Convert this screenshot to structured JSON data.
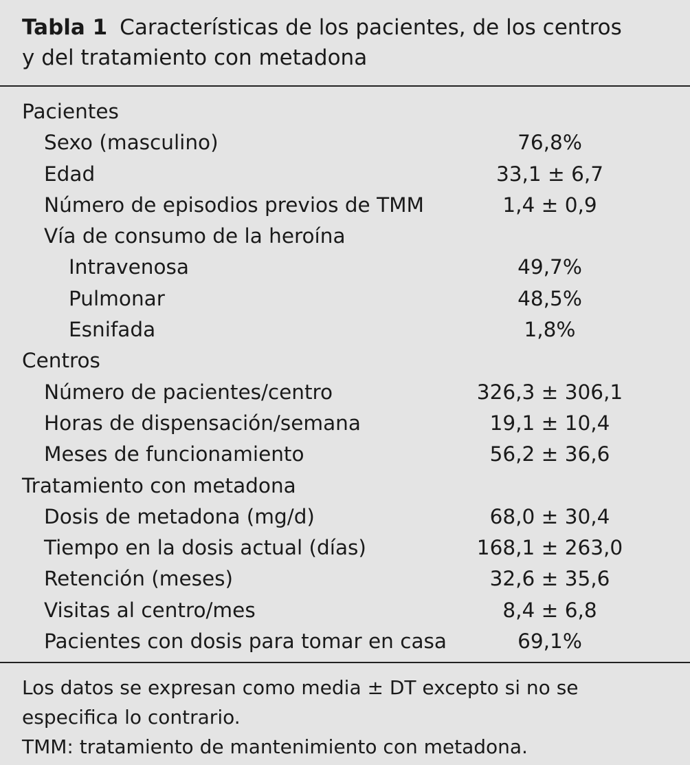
{
  "table": {
    "label": "Tabla 1",
    "title_line1": "Características de los pacientes, de los centros",
    "title_line2": "y del tratamiento con metadona",
    "rows": [
      {
        "label": "Pacientes",
        "value": "",
        "level": 0
      },
      {
        "label": "Sexo (masculino)",
        "value": "76,8%",
        "level": 1
      },
      {
        "label": "Edad",
        "value": "33,1 ± 6,7",
        "level": 1
      },
      {
        "label": "Número de episodios previos de TMM",
        "value": "1,4 ± 0,9",
        "level": 1
      },
      {
        "label": "Vía de consumo de la heroína",
        "value": "",
        "level": 1
      },
      {
        "label": "Intravenosa",
        "value": "49,7%",
        "level": 2
      },
      {
        "label": "Pulmonar",
        "value": "48,5%",
        "level": 2
      },
      {
        "label": "Esnifada",
        "value": "1,8%",
        "level": 2
      },
      {
        "label": "Centros",
        "value": "",
        "level": 0
      },
      {
        "label": "Número de pacientes/centro",
        "value": "326,3 ± 306,1",
        "level": 1
      },
      {
        "label": "Horas de dispensación/semana",
        "value": "19,1 ± 10,4",
        "level": 1
      },
      {
        "label": "Meses de funcionamiento",
        "value": "56,2 ± 36,6",
        "level": 1
      },
      {
        "label": "Tratamiento con metadona",
        "value": "",
        "level": 0
      },
      {
        "label": "Dosis de metadona (mg/d)",
        "value": "68,0 ± 30,4",
        "level": 1
      },
      {
        "label": "Tiempo en la dosis actual (días)",
        "value": "168,1 ± 263,0",
        "level": 1
      },
      {
        "label": "Retención (meses)",
        "value": "32,6 ± 35,6",
        "level": 1
      },
      {
        "label": "Visitas al centro/mes",
        "value": "8,4 ± 6,8",
        "level": 1
      },
      {
        "label": "Pacientes con dosis para tomar en casa",
        "value": "69,1%",
        "level": 1
      }
    ],
    "notes": [
      "Los datos se expresan como media ± DT excepto si no se",
      "especifica lo contrario.",
      "TMM: tratamiento de mantenimiento con metadona."
    ]
  }
}
